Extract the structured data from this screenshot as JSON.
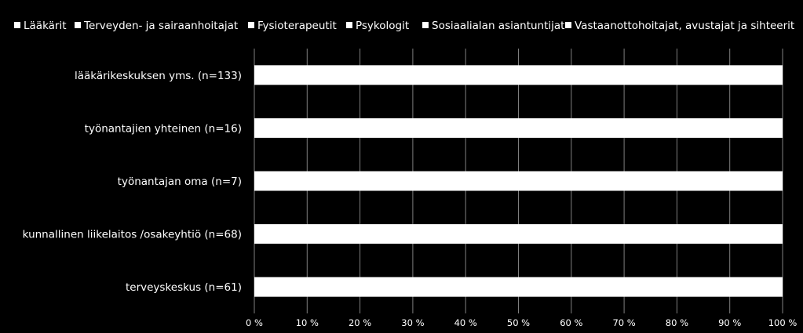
{
  "chart_data": {
    "type": "bar",
    "orientation": "horizontal",
    "stacked": true,
    "percent": true,
    "categories": [
      "lääkärikeskuksen yms. (n=133)",
      "työnantajien yhteinen (n=16)",
      "työnantajan oma (n=7)",
      "kunnallinen liikelaitos /osakeyhtiö (n=68)",
      "terveyskeskus (n=61)"
    ],
    "series": [
      {
        "name": "Lääkärit",
        "values": [
          100,
          100,
          100,
          100,
          100
        ]
      },
      {
        "name": "Terveyden- ja sairaanhoitajat",
        "values": [
          0,
          0,
          0,
          0,
          0
        ]
      },
      {
        "name": "Fysioterapeutit",
        "values": [
          0,
          0,
          0,
          0,
          0
        ]
      },
      {
        "name": "Psykologit",
        "values": [
          0,
          0,
          0,
          0,
          0
        ]
      },
      {
        "name": "Sosiaalialan asiantuntijat",
        "values": [
          0,
          0,
          0,
          0,
          0
        ]
      },
      {
        "name": "Vastaanottohoitajat, avustajat ja sihteerit",
        "values": [
          0,
          0,
          0,
          0,
          0
        ]
      }
    ],
    "xlim": [
      0,
      100
    ],
    "xticks": [
      "0 %",
      "10 %",
      "20 %",
      "30 %",
      "40 %",
      "50 %",
      "60 %",
      "70 %",
      "80 %",
      "90 %",
      "100 %"
    ],
    "grid": true,
    "legend_position": "top",
    "colors": {
      "background": "#000000",
      "series": [
        "#ffffff",
        "#ffffff",
        "#ffffff",
        "#ffffff",
        "#ffffff",
        "#ffffff"
      ],
      "grid": "#7f7f7f",
      "text": "#ffffff"
    }
  }
}
